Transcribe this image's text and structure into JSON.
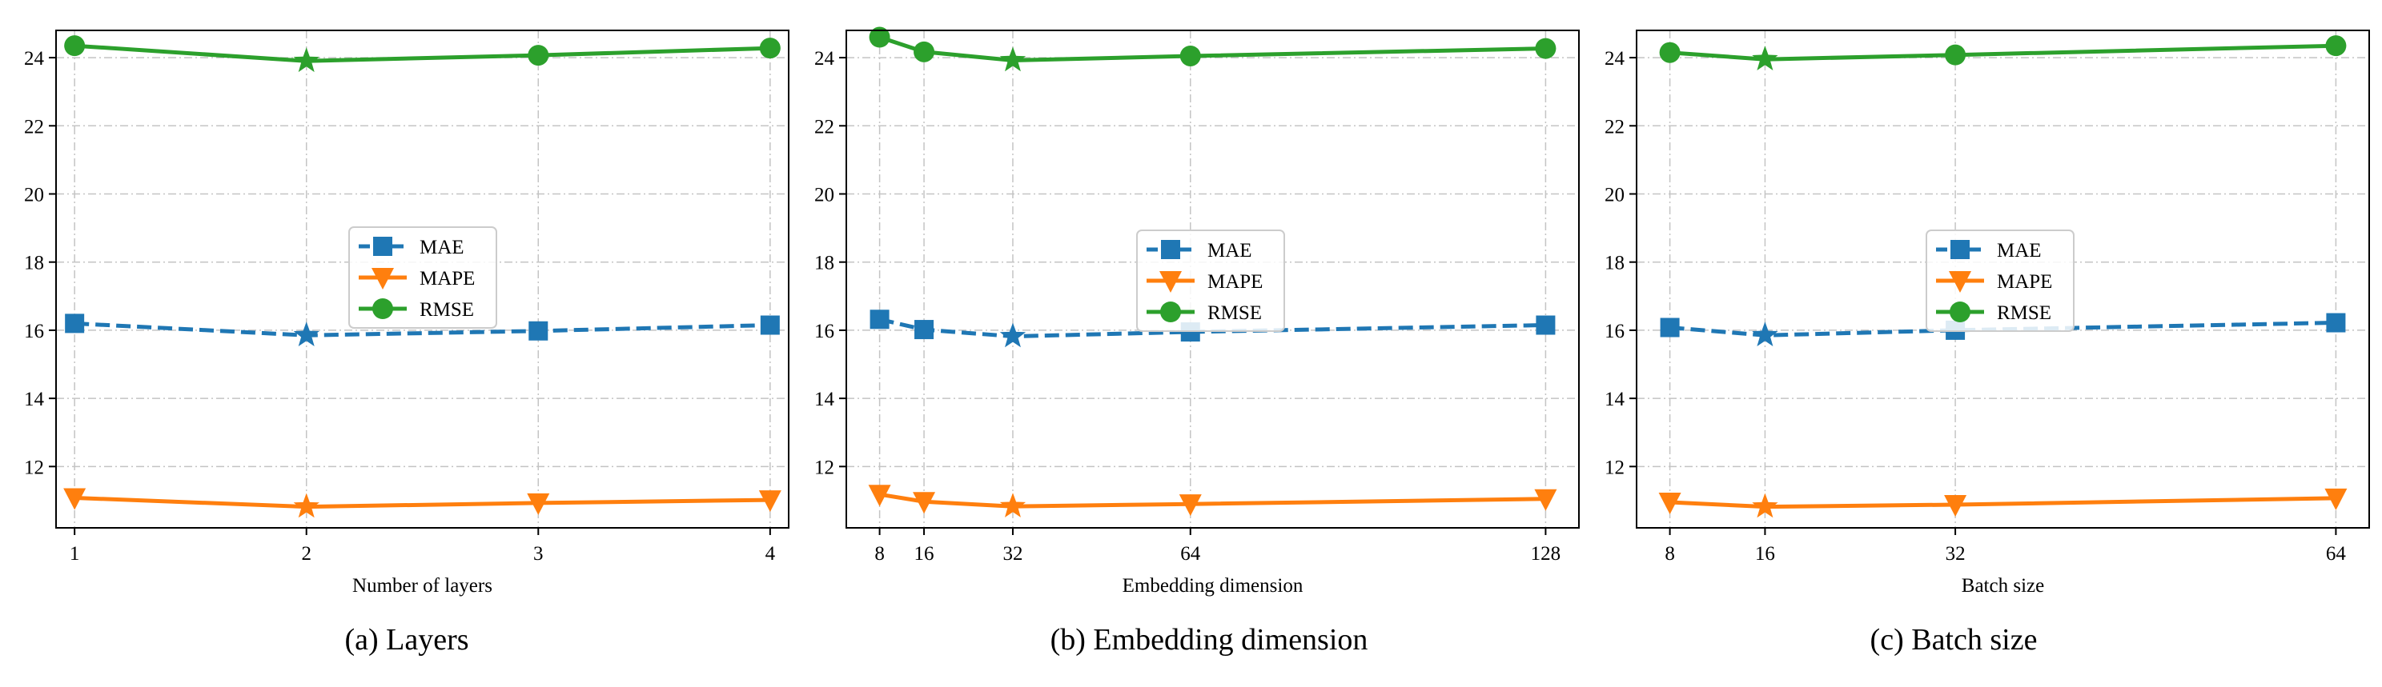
{
  "styles": {
    "MAE": {
      "color": "#1f77b4",
      "marker": "square",
      "dash": true
    },
    "MAPE": {
      "color": "#ff7f0e",
      "marker": "triangle-down",
      "dash": false
    },
    "RMSE": {
      "color": "#2ca02c",
      "marker": "circle",
      "dash": false
    },
    "best_marker": "star"
  },
  "chart_data": [
    {
      "type": "line",
      "caption": "(a) Layers",
      "xlabel": "Number of layers",
      "ylabel": "",
      "x": [
        1,
        2,
        3,
        4
      ],
      "x_ticks": [
        1,
        2,
        3,
        4
      ],
      "xlim": [
        0.92,
        4.08
      ],
      "ylim": [
        10.2,
        24.8
      ],
      "y_ticks": [
        12,
        14,
        16,
        18,
        20,
        22,
        24
      ],
      "grid": true,
      "legend_position": "center-left",
      "best_index": 1,
      "series": [
        {
          "name": "MAE",
          "values": [
            16.2,
            15.85,
            15.98,
            16.15
          ]
        },
        {
          "name": "MAPE",
          "values": [
            11.08,
            10.82,
            10.93,
            11.02
          ]
        },
        {
          "name": "RMSE",
          "values": [
            24.35,
            23.9,
            24.07,
            24.28
          ]
        }
      ]
    },
    {
      "type": "line",
      "caption": "(b) Embedding dimension",
      "xlabel": "Embedding dimension",
      "ylabel": "",
      "x": [
        8,
        16,
        32,
        64,
        128
      ],
      "x_ticks": [
        8,
        16,
        32,
        64,
        128
      ],
      "xlim": [
        2,
        134
      ],
      "ylim": [
        10.2,
        24.8
      ],
      "y_ticks": [
        12,
        14,
        16,
        18,
        20,
        22,
        24
      ],
      "grid": true,
      "legend_position": "center",
      "best_index": 2,
      "series": [
        {
          "name": "MAE",
          "values": [
            16.32,
            16.02,
            15.82,
            15.95,
            16.15
          ]
        },
        {
          "name": "MAPE",
          "values": [
            11.18,
            10.97,
            10.83,
            10.9,
            11.05
          ]
        },
        {
          "name": "RMSE",
          "values": [
            24.6,
            24.17,
            23.92,
            24.05,
            24.27
          ]
        }
      ]
    },
    {
      "type": "line",
      "caption": "(c) Batch size",
      "xlabel": "Batch size",
      "ylabel": "",
      "x": [
        8,
        16,
        32,
        64
      ],
      "x_ticks": [
        8,
        16,
        32,
        64
      ],
      "xlim": [
        5.2,
        66.8
      ],
      "ylim": [
        10.2,
        24.8
      ],
      "y_ticks": [
        12,
        14,
        16,
        18,
        20,
        22,
        24
      ],
      "grid": true,
      "legend_position": "center",
      "best_index": 1,
      "series": [
        {
          "name": "MAE",
          "values": [
            16.08,
            15.85,
            16.0,
            16.22
          ]
        },
        {
          "name": "MAPE",
          "values": [
            10.95,
            10.82,
            10.88,
            11.07
          ]
        },
        {
          "name": "RMSE",
          "values": [
            24.15,
            23.95,
            24.08,
            24.35
          ]
        }
      ]
    }
  ]
}
